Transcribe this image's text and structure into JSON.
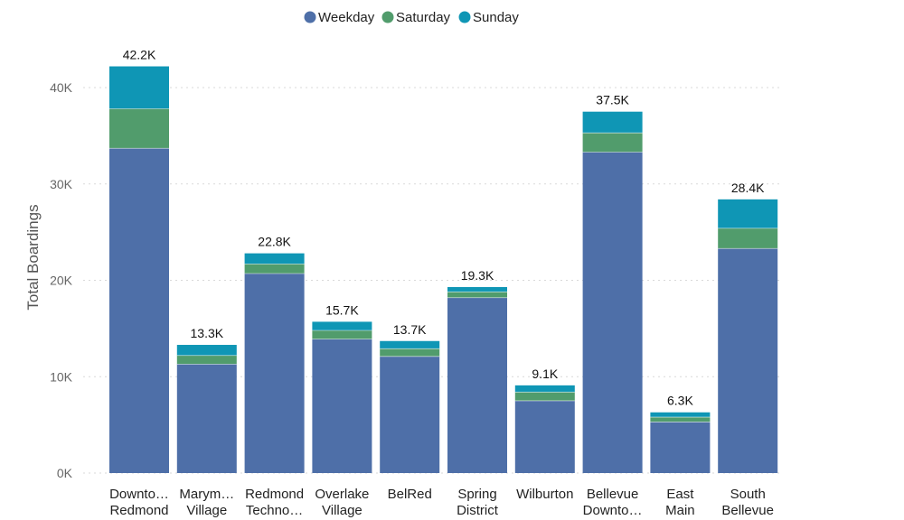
{
  "chart_data": {
    "type": "bar",
    "stacked": true,
    "title": "",
    "xlabel": "",
    "ylabel": "Total Boardings",
    "ylim": [
      0,
      43000
    ],
    "yticks": [
      0,
      10000,
      20000,
      30000,
      40000
    ],
    "ytick_labels": [
      "0K",
      "10K",
      "20K",
      "30K",
      "40K"
    ],
    "grid": true,
    "legend_position": "top-center",
    "categories": [
      [
        "Downto…",
        "Redmond"
      ],
      [
        "Marym…",
        "Village"
      ],
      [
        "Redmond",
        "Techno…"
      ],
      [
        "Overlake",
        "Village"
      ],
      [
        "BelRed"
      ],
      [
        "Spring",
        "District"
      ],
      [
        "Wilburton"
      ],
      [
        "Bellevue",
        "Downto…"
      ],
      [
        "East",
        "Main"
      ],
      [
        "South",
        "Bellevue"
      ]
    ],
    "series": [
      {
        "name": "Weekday",
        "color": "#4e6fa8",
        "values": [
          33700,
          11300,
          20700,
          13900,
          12100,
          18200,
          7500,
          33300,
          5300,
          23300
        ]
      },
      {
        "name": "Saturday",
        "color": "#519c6c",
        "values": [
          4100,
          900,
          1000,
          900,
          800,
          600,
          900,
          2000,
          500,
          2100
        ]
      },
      {
        "name": "Sunday",
        "color": "#0f96b5",
        "values": [
          4400,
          1100,
          1100,
          900,
          800,
          500,
          700,
          2200,
          500,
          3000
        ]
      }
    ],
    "total_labels": [
      "42.2K",
      "13.3K",
      "22.8K",
      "15.7K",
      "13.7K",
      "19.3K",
      "9.1K",
      "37.5K",
      "6.3K",
      "28.4K"
    ]
  }
}
